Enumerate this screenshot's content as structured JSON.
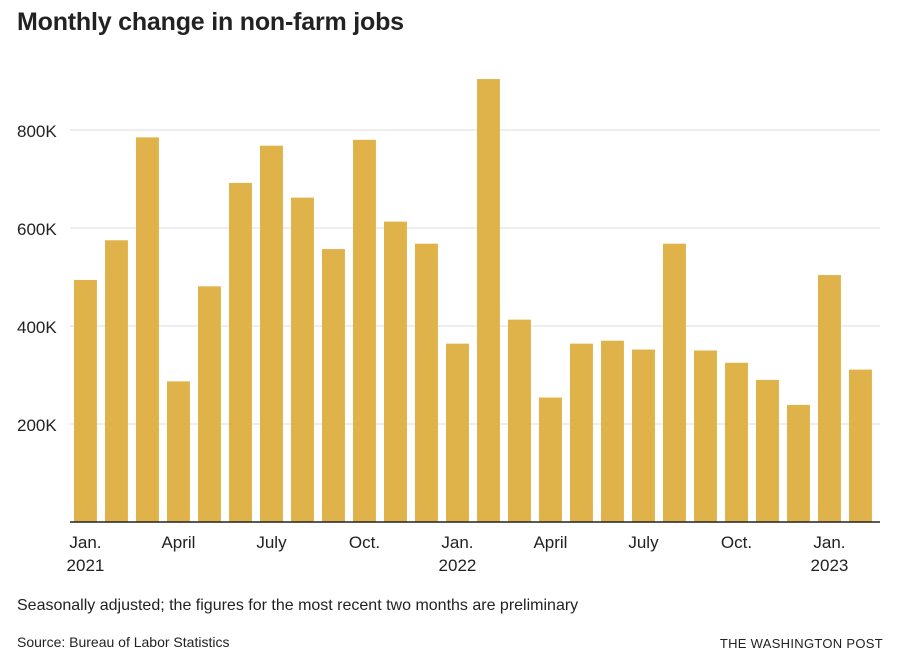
{
  "chart_data": {
    "type": "bar",
    "title": "Monthly change in non-farm jobs",
    "subtitle": "",
    "xlabel": "",
    "ylabel": "",
    "ylim": [
      0,
      900000
    ],
    "yticks": [
      200000,
      400000,
      600000,
      800000
    ],
    "ytick_labels": [
      "200K",
      "400K",
      "600K",
      "800K"
    ],
    "grid": true,
    "categories": [
      "Jan. 2021",
      "Feb. 2021",
      "Mar. 2021",
      "Apr. 2021",
      "May 2021",
      "Jun. 2021",
      "Jul. 2021",
      "Aug. 2021",
      "Sep. 2021",
      "Oct. 2021",
      "Nov. 2021",
      "Dec. 2021",
      "Jan. 2022",
      "Feb. 2022",
      "Mar. 2022",
      "Apr. 2022",
      "May 2022",
      "Jun. 2022",
      "Jul. 2022",
      "Aug. 2022",
      "Sep. 2022",
      "Oct. 2022",
      "Nov. 2022",
      "Dec. 2022",
      "Jan. 2023",
      "Feb. 2023"
    ],
    "values": [
      494000,
      575000,
      785000,
      287000,
      481000,
      692000,
      768000,
      662000,
      557000,
      780000,
      613000,
      568000,
      364000,
      904000,
      413000,
      254000,
      364000,
      370000,
      352000,
      568000,
      350000,
      325000,
      290000,
      239000,
      504000,
      311000
    ],
    "xtick_labels": [
      {
        "index": 0,
        "lines": [
          "Jan.",
          "2021"
        ]
      },
      {
        "index": 3,
        "lines": [
          "April"
        ]
      },
      {
        "index": 6,
        "lines": [
          "July"
        ]
      },
      {
        "index": 9,
        "lines": [
          "Oct."
        ]
      },
      {
        "index": 12,
        "lines": [
          "Jan.",
          "2022"
        ]
      },
      {
        "index": 15,
        "lines": [
          "April"
        ]
      },
      {
        "index": 18,
        "lines": [
          "July"
        ]
      },
      {
        "index": 21,
        "lines": [
          "Oct."
        ]
      },
      {
        "index": 24,
        "lines": [
          "Jan.",
          "2023"
        ]
      }
    ],
    "bar_color": "#e0b34a",
    "grid_color": "#dddddd",
    "axis_color": "#222222"
  },
  "footer": {
    "note": "Seasonally adjusted; the figures for the most recent two months are preliminary",
    "source": "Source: Bureau of Labor Statistics",
    "brand": "THE WASHINGTON POST"
  }
}
